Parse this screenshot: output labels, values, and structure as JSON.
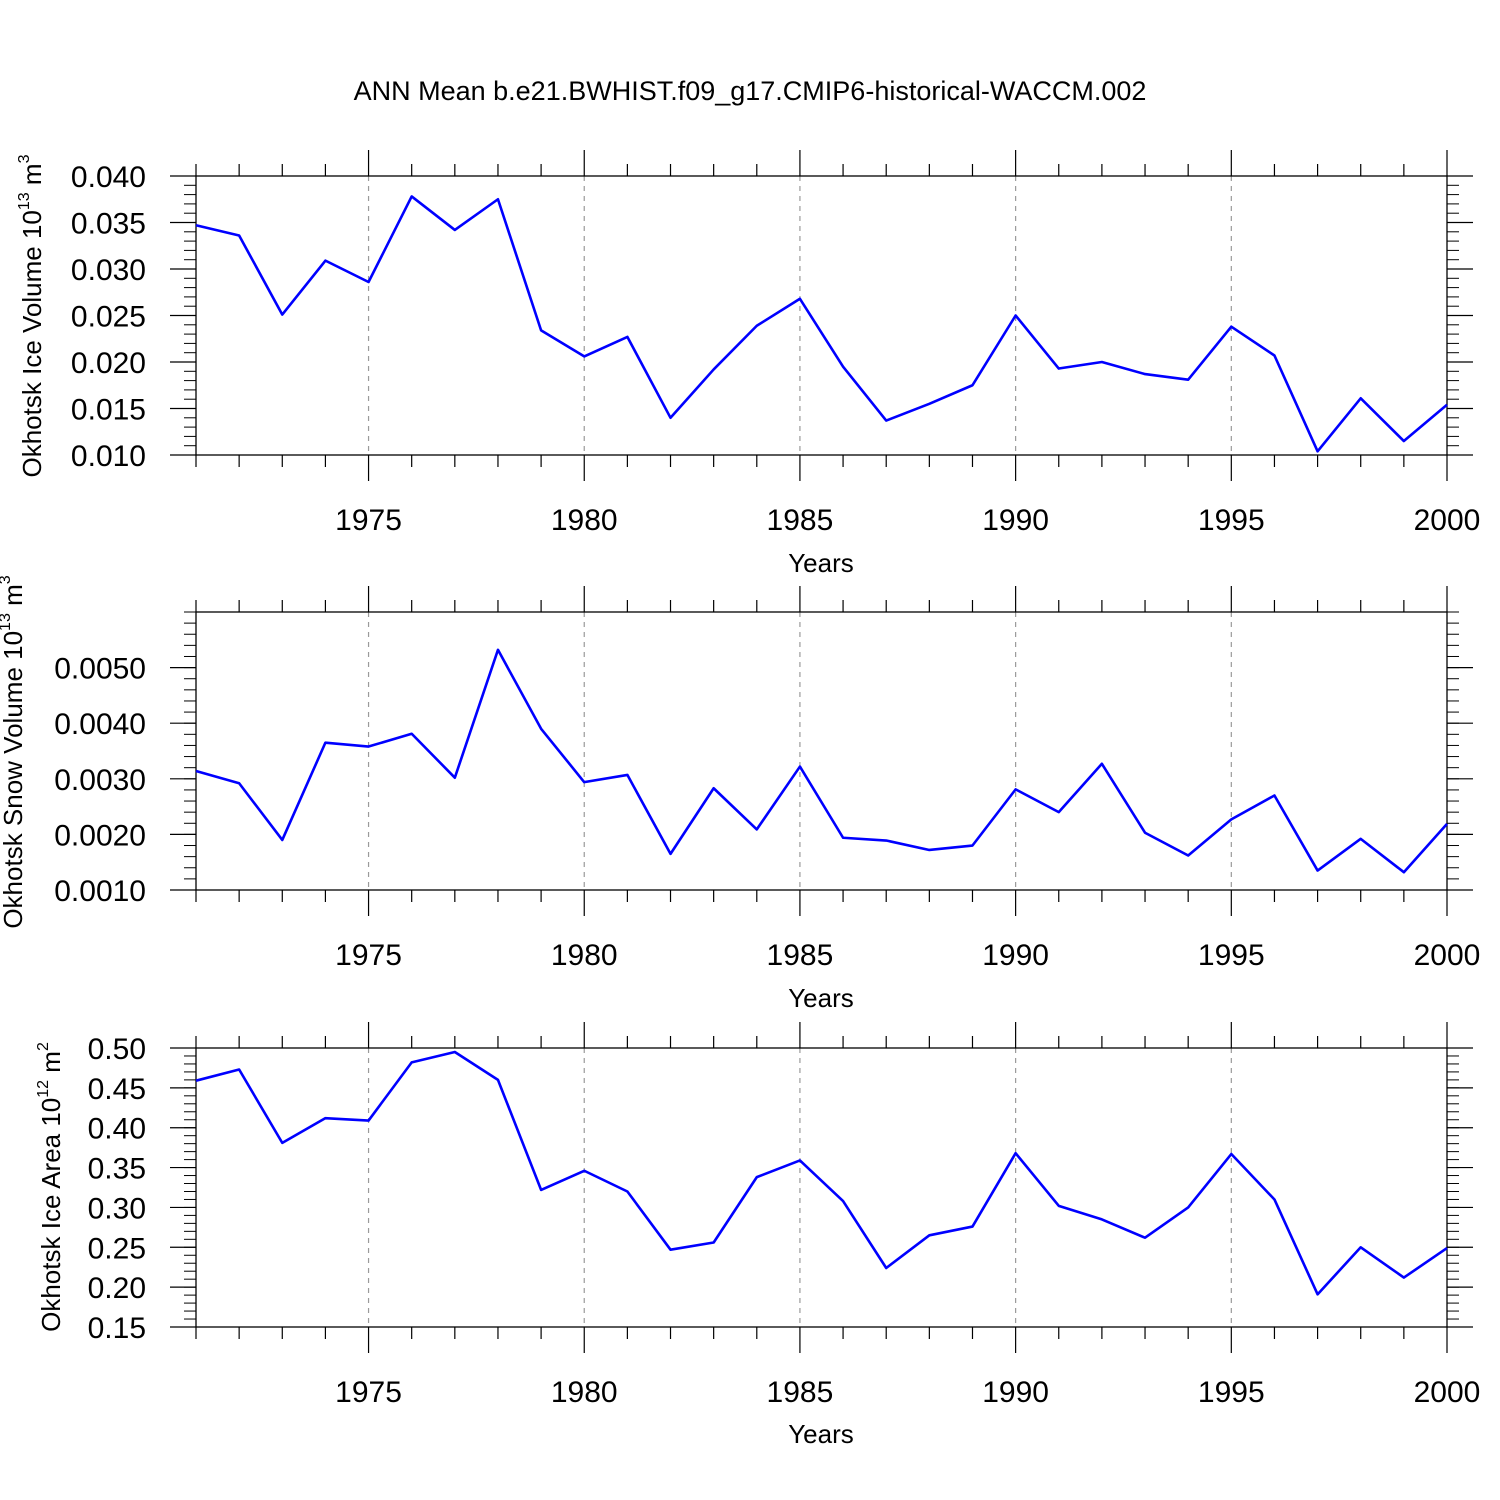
{
  "title": "ANN Mean b.e21.BWHIST.f09_g17.CMIP6-historical-WACCM.002",
  "line_color": "#0000FF",
  "chart_data": [
    {
      "type": "line",
      "ylabel": "Okhotsk Ice Volume",
      "yunit_exp": "13",
      "yunit_base": "10",
      "yunit_var": "m",
      "yunit_pow": "3",
      "xlabel": "Years",
      "xlim": [
        1971,
        2000
      ],
      "ylim": [
        0.01,
        0.04
      ],
      "x_ticks": [
        "1975",
        "1980",
        "1985",
        "1990",
        "1995",
        "2000"
      ],
      "y_ticks": [
        "0.010",
        "0.015",
        "0.020",
        "0.025",
        "0.030",
        "0.035",
        "0.040"
      ],
      "grid": "vertical dashed at major x ticks",
      "x": [
        1971,
        1972,
        1973,
        1974,
        1975,
        1976,
        1977,
        1978,
        1979,
        1980,
        1981,
        1982,
        1983,
        1984,
        1985,
        1986,
        1987,
        1988,
        1989,
        1990,
        1991,
        1992,
        1993,
        1994,
        1995,
        1996,
        1997,
        1998,
        1999,
        2000
      ],
      "y": [
        0.0347,
        0.0336,
        0.0251,
        0.0309,
        0.0286,
        0.0378,
        0.0342,
        0.0375,
        0.0234,
        0.0206,
        0.0227,
        0.014,
        0.0192,
        0.0239,
        0.0268,
        0.0195,
        0.0137,
        0.0155,
        0.0175,
        0.025,
        0.0193,
        0.02,
        0.0187,
        0.0181,
        0.0238,
        0.0207,
        0.0104,
        0.0161,
        0.0115,
        0.0154
      ]
    },
    {
      "type": "line",
      "ylabel": "Okhotsk Snow Volume",
      "yunit_exp": "13",
      "yunit_base": "10",
      "yunit_var": "m",
      "yunit_pow": "3",
      "xlabel": "Years",
      "xlim": [
        1971,
        2000
      ],
      "ylim": [
        0.001,
        0.006
      ],
      "x_ticks": [
        "1975",
        "1980",
        "1985",
        "1990",
        "1995",
        "2000"
      ],
      "y_ticks": [
        "0.0010",
        "0.0020",
        "0.0030",
        "0.0040",
        "0.0050"
      ],
      "grid": "vertical dashed at major x ticks",
      "x": [
        1971,
        1972,
        1973,
        1974,
        1975,
        1976,
        1977,
        1978,
        1979,
        1980,
        1981,
        1982,
        1983,
        1984,
        1985,
        1986,
        1987,
        1988,
        1989,
        1990,
        1991,
        1992,
        1993,
        1994,
        1995,
        1996,
        1997,
        1998,
        1999,
        2000
      ],
      "y": [
        0.00314,
        0.00292,
        0.0019,
        0.00365,
        0.00358,
        0.00381,
        0.00302,
        0.00532,
        0.0039,
        0.00294,
        0.00307,
        0.00165,
        0.00283,
        0.00209,
        0.00322,
        0.00194,
        0.00189,
        0.00172,
        0.0018,
        0.00281,
        0.0024,
        0.00327,
        0.00203,
        0.00162,
        0.00227,
        0.0027,
        0.00135,
        0.00192,
        0.00132,
        0.00219
      ]
    },
    {
      "type": "line",
      "ylabel": "Okhotsk Ice Area",
      "yunit_exp": "12",
      "yunit_base": "10",
      "yunit_var": "m",
      "yunit_pow": "2",
      "xlabel": "Years",
      "xlim": [
        1971,
        2000
      ],
      "ylim": [
        0.15,
        0.5
      ],
      "x_ticks": [
        "1975",
        "1980",
        "1985",
        "1990",
        "1995",
        "2000"
      ],
      "y_ticks": [
        "0.15",
        "0.20",
        "0.25",
        "0.30",
        "0.35",
        "0.40",
        "0.45",
        "0.50"
      ],
      "grid": "vertical dashed at major x ticks",
      "x": [
        1971,
        1972,
        1973,
        1974,
        1975,
        1976,
        1977,
        1978,
        1979,
        1980,
        1981,
        1982,
        1983,
        1984,
        1985,
        1986,
        1987,
        1988,
        1989,
        1990,
        1991,
        1992,
        1993,
        1994,
        1995,
        1996,
        1997,
        1998,
        1999,
        2000
      ],
      "y": [
        0.459,
        0.473,
        0.381,
        0.412,
        0.409,
        0.482,
        0.495,
        0.46,
        0.322,
        0.346,
        0.32,
        0.247,
        0.256,
        0.338,
        0.359,
        0.308,
        0.224,
        0.265,
        0.276,
        0.368,
        0.302,
        0.285,
        0.262,
        0.3,
        0.367,
        0.31,
        0.191,
        0.25,
        0.212,
        0.249
      ]
    }
  ]
}
